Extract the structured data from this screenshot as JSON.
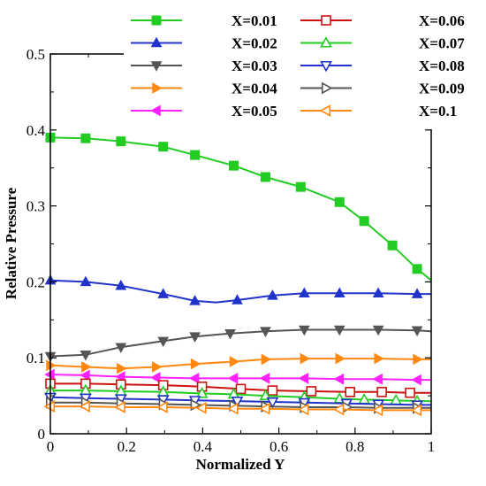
{
  "chart_data": {
    "type": "line",
    "xlabel": "Normalized Y",
    "ylabel": "Relative Pressure",
    "xlim": [
      0,
      1
    ],
    "ylim": [
      0,
      0.5
    ],
    "xticks": [
      "0",
      "0.2",
      "0.4",
      "0.6",
      "0.8",
      "1"
    ],
    "yticks": [
      "0",
      "0.1",
      "0.2",
      "0.3",
      "0.4",
      "0.5"
    ],
    "legend_position": "top-right",
    "grid": false,
    "series": [
      {
        "name": "X=0.01",
        "color": "#22cc22",
        "marker": "square-filled",
        "x": [
          0,
          0.0926,
          0.1852,
          0.2963,
          0.3796,
          0.4815,
          0.5648,
          0.6574,
          0.7593,
          0.8241,
          0.8981,
          0.963,
          1
        ],
        "y": [
          0.39,
          0.389,
          0.385,
          0.378,
          0.367,
          0.353,
          0.338,
          0.325,
          0.305,
          0.28,
          0.248,
          0.217,
          0.202
        ],
        "marker_idx": [
          0,
          1,
          2,
          3,
          4,
          5,
          6,
          7,
          8,
          9,
          10,
          11
        ]
      },
      {
        "name": "X=0.02",
        "color": "#2233cc",
        "marker": "triangle-up-filled",
        "x": [
          0,
          0.0926,
          0.1852,
          0.2963,
          0.3796,
          0.4352,
          0.4907,
          0.5833,
          0.6667,
          0.7593,
          0.8611,
          0.963,
          1
        ],
        "y": [
          0.202,
          0.2,
          0.195,
          0.184,
          0.175,
          0.173,
          0.176,
          0.182,
          0.185,
          0.185,
          0.185,
          0.184,
          0.184
        ],
        "marker_idx": [
          0,
          1,
          2,
          3,
          4,
          6,
          7,
          8,
          9,
          10,
          11
        ]
      },
      {
        "name": "X=0.03",
        "color": "#555555",
        "marker": "triangle-down-filled",
        "x": [
          0,
          0.0926,
          0.1852,
          0.2963,
          0.3796,
          0.4722,
          0.5648,
          0.6667,
          0.7593,
          0.8611,
          0.963,
          1
        ],
        "y": [
          0.102,
          0.104,
          0.114,
          0.122,
          0.128,
          0.132,
          0.135,
          0.137,
          0.137,
          0.137,
          0.136,
          0.135
        ],
        "marker_idx": [
          0,
          1,
          2,
          3,
          4,
          5,
          6,
          7,
          8,
          9,
          10
        ]
      },
      {
        "name": "X=0.04",
        "color": "#ff8811",
        "marker": "triangle-right-filled",
        "x": [
          0,
          0.0926,
          0.1852,
          0.2778,
          0.3796,
          0.4815,
          0.5648,
          0.6667,
          0.7593,
          0.8611,
          0.963,
          1
        ],
        "y": [
          0.09,
          0.088,
          0.086,
          0.088,
          0.092,
          0.095,
          0.098,
          0.099,
          0.099,
          0.099,
          0.098,
          0.098
        ],
        "marker_idx": [
          0,
          1,
          2,
          3,
          4,
          5,
          6,
          7,
          8,
          9,
          10
        ]
      },
      {
        "name": "X=0.05",
        "color": "#ff22ff",
        "marker": "triangle-left-filled",
        "x": [
          0,
          0.0926,
          0.1852,
          0.2778,
          0.3796,
          0.4815,
          0.5648,
          0.6667,
          0.7593,
          0.8611,
          0.963,
          1
        ],
        "y": [
          0.078,
          0.077,
          0.075,
          0.074,
          0.073,
          0.073,
          0.073,
          0.073,
          0.072,
          0.072,
          0.071,
          0.071
        ],
        "marker_idx": [
          0,
          1,
          2,
          3,
          4,
          5,
          6,
          7,
          8,
          9,
          10
        ]
      },
      {
        "name": "X=0.06",
        "color": "#cc1111",
        "marker": "square-open",
        "x": [
          0,
          0.0926,
          0.1852,
          0.2963,
          0.3981,
          0.5,
          0.5833,
          0.6852,
          0.787,
          0.8704,
          0.9444,
          1
        ],
        "y": [
          0.066,
          0.066,
          0.065,
          0.064,
          0.062,
          0.059,
          0.057,
          0.056,
          0.055,
          0.055,
          0.054,
          0.054
        ],
        "marker_idx": [
          0,
          1,
          2,
          3,
          4,
          5,
          6,
          7,
          8,
          9,
          10
        ]
      },
      {
        "name": "X=0.07",
        "color": "#22cc22",
        "marker": "triangle-up-open",
        "x": [
          0,
          0.0926,
          0.1852,
          0.2963,
          0.3981,
          0.4815,
          0.5648,
          0.6667,
          0.7593,
          0.8241,
          0.9074,
          0.963,
          1
        ],
        "y": [
          0.057,
          0.057,
          0.056,
          0.055,
          0.053,
          0.052,
          0.05,
          0.048,
          0.046,
          0.045,
          0.044,
          0.043,
          0.043
        ],
        "marker_idx": [
          0,
          1,
          2,
          3,
          4,
          5,
          6,
          7,
          8,
          9,
          10,
          11
        ]
      },
      {
        "name": "X=0.08",
        "color": "#2233cc",
        "marker": "triangle-down-open",
        "x": [
          0,
          0.0926,
          0.1852,
          0.2963,
          0.3796,
          0.4907,
          0.5833,
          0.6667,
          0.7778,
          0.8611,
          0.963,
          1
        ],
        "y": [
          0.048,
          0.047,
          0.046,
          0.045,
          0.044,
          0.043,
          0.042,
          0.041,
          0.04,
          0.039,
          0.038,
          0.038
        ],
        "marker_idx": [
          0,
          1,
          2,
          3,
          4,
          5,
          6,
          7,
          8,
          9,
          10
        ]
      },
      {
        "name": "X=0.09",
        "color": "#555555",
        "marker": "triangle-right-open",
        "x": [
          0,
          0.0926,
          0.1852,
          0.2963,
          0.3796,
          0.4815,
          0.5648,
          0.6667,
          0.7778,
          0.8611,
          0.963,
          1
        ],
        "y": [
          0.041,
          0.041,
          0.04,
          0.039,
          0.038,
          0.037,
          0.036,
          0.035,
          0.035,
          0.034,
          0.034,
          0.034
        ],
        "marker_idx": [
          0,
          1,
          2,
          3,
          4,
          5,
          6,
          7,
          8,
          9,
          10
        ]
      },
      {
        "name": "X=0.1",
        "color": "#ff8811",
        "marker": "triangle-left-open",
        "x": [
          0,
          0.0926,
          0.1852,
          0.2963,
          0.3981,
          0.4815,
          0.5648,
          0.6667,
          0.7593,
          0.8611,
          0.963,
          1
        ],
        "y": [
          0.036,
          0.036,
          0.035,
          0.035,
          0.034,
          0.033,
          0.033,
          0.032,
          0.032,
          0.031,
          0.031,
          0.031
        ],
        "marker_idx": [
          0,
          1,
          2,
          3,
          4,
          5,
          6,
          7,
          8,
          9,
          10
        ]
      }
    ]
  }
}
